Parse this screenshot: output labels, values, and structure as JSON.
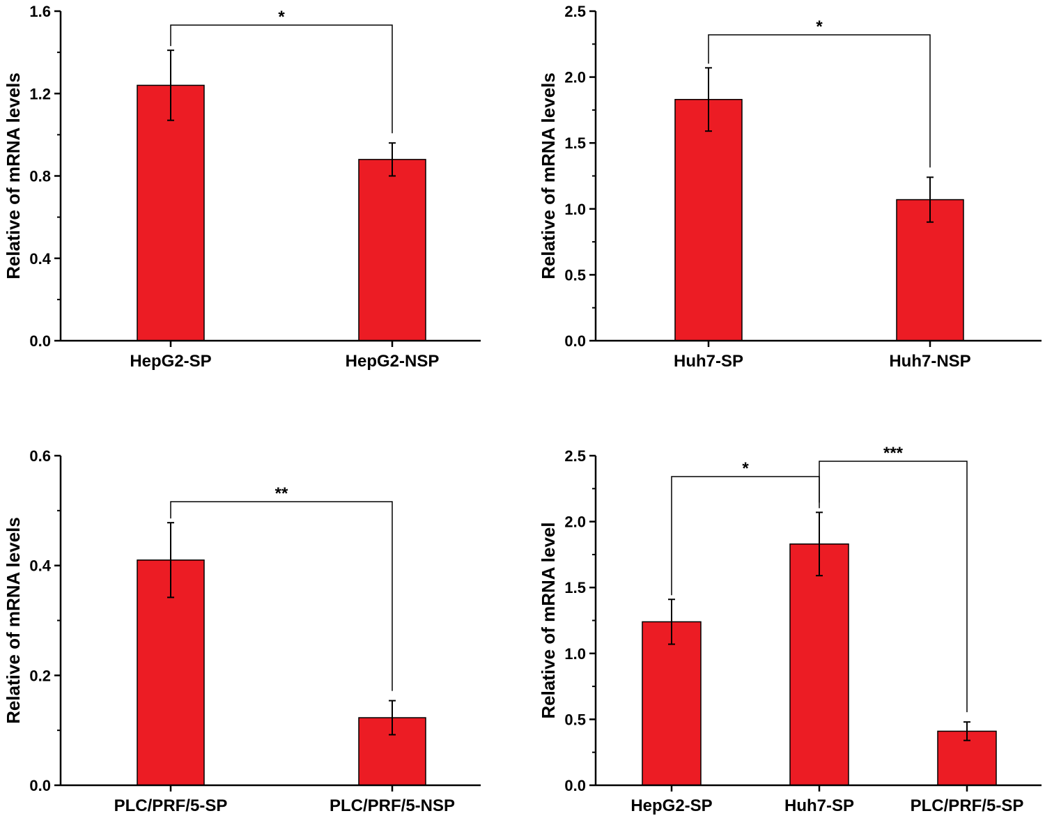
{
  "chart_data": [
    {
      "type": "bar",
      "categories": [
        "HepG2-SP",
        "HepG2-NSP"
      ],
      "values": [
        1.24,
        0.88
      ],
      "errors": [
        0.17,
        0.08
      ],
      "ylabel": "Relative of mRNA  levels",
      "ylim": [
        0,
        1.6
      ],
      "yticks": [
        "0.0",
        "0.4",
        "0.8",
        "1.2",
        "1.6"
      ],
      "bar_color": "#ec1c24",
      "significance": [
        {
          "from": 0,
          "to": 1,
          "label": "*"
        }
      ]
    },
    {
      "type": "bar",
      "categories": [
        "Huh7-SP",
        "Huh7-NSP"
      ],
      "values": [
        1.83,
        1.07
      ],
      "errors": [
        0.24,
        0.17
      ],
      "ylabel": "Relative of mRNA  levels",
      "ylim": [
        0,
        2.5
      ],
      "yticks": [
        "0.0",
        "0.5",
        "1.0",
        "1.5",
        "2.0",
        "2.5"
      ],
      "bar_color": "#ec1c24",
      "significance": [
        {
          "from": 0,
          "to": 1,
          "label": "*"
        }
      ]
    },
    {
      "type": "bar",
      "categories": [
        "PLC/PRF/5-SP",
        "PLC/PRF/5-NSP"
      ],
      "values": [
        0.41,
        0.123
      ],
      "errors": [
        0.068,
        0.031
      ],
      "ylabel": "Relative of mRNA  levels",
      "ylim": [
        0,
        0.6
      ],
      "yticks": [
        "0.0",
        "0.2",
        "0.4",
        "0.6"
      ],
      "bar_color": "#ec1c24",
      "significance": [
        {
          "from": 0,
          "to": 1,
          "label": "**"
        }
      ]
    },
    {
      "type": "bar",
      "categories": [
        "HepG2-SP",
        "Huh7-SP",
        "PLC/PRF/5-SP"
      ],
      "values": [
        1.24,
        1.83,
        0.41
      ],
      "errors": [
        0.17,
        0.24,
        0.07
      ],
      "ylabel": "Relative of mRNA level",
      "ylim": [
        0,
        2.5
      ],
      "yticks": [
        "0.0",
        "0.5",
        "1.0",
        "1.5",
        "2.0",
        "2.5"
      ],
      "bar_color": "#ec1c24",
      "significance": [
        {
          "from": 0,
          "to": 1,
          "label": "*"
        },
        {
          "from": 1,
          "to": 2,
          "label": "***"
        }
      ]
    }
  ]
}
